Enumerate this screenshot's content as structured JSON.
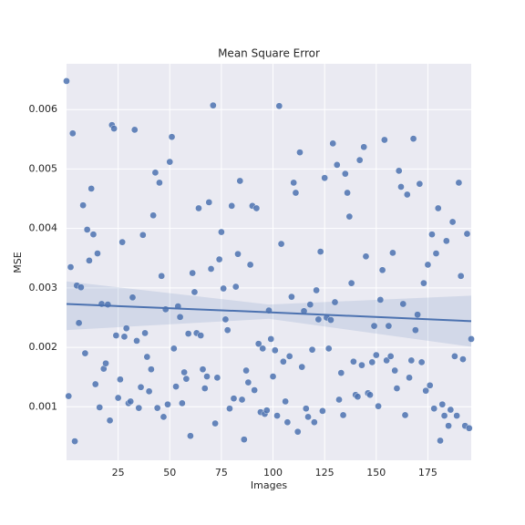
{
  "chart_data": {
    "type": "scatter",
    "title": "Mean Square Error",
    "x_label": "Images",
    "y_label": "MSE",
    "color": "#4c72b0",
    "grid": true,
    "xlim": [
      0,
      196
    ],
    "ylim": [
      0.0001,
      0.00677
    ],
    "xticks": [
      25,
      50,
      75,
      100,
      125,
      150,
      175
    ],
    "yticks": [
      0.001,
      0.002,
      0.003,
      0.004,
      0.005,
      0.006
    ],
    "x": [
      0,
      1,
      2,
      3,
      4,
      5,
      6,
      7,
      8,
      9,
      10,
      11,
      12,
      13,
      14,
      15,
      16,
      17,
      18,
      19,
      20,
      21,
      22,
      23,
      24,
      25,
      26,
      27,
      28,
      29,
      30,
      31,
      32,
      33,
      34,
      35,
      36,
      37,
      38,
      39,
      40,
      41,
      42,
      43,
      44,
      45,
      46,
      47,
      48,
      49,
      50,
      51,
      52,
      53,
      54,
      55,
      56,
      57,
      58,
      59,
      60,
      61,
      62,
      63,
      64,
      65,
      66,
      67,
      68,
      69,
      70,
      71,
      72,
      73,
      74,
      75,
      76,
      77,
      78,
      79,
      80,
      81,
      82,
      83,
      84,
      85,
      86,
      87,
      88,
      89,
      90,
      91,
      92,
      93,
      94,
      95,
      96,
      97,
      98,
      99,
      100,
      101,
      102,
      103,
      104,
      105,
      106,
      107,
      108,
      109,
      110,
      111,
      112,
      113,
      114,
      115,
      116,
      117,
      118,
      119,
      120,
      121,
      122,
      123,
      124,
      125,
      126,
      127,
      128,
      129,
      130,
      131,
      132,
      133,
      134,
      135,
      136,
      137,
      138,
      139,
      140,
      141,
      142,
      143,
      144,
      145,
      146,
      147,
      148,
      149,
      150,
      151,
      152,
      153,
      154,
      155,
      156,
      157,
      158,
      159,
      160,
      161,
      162,
      163,
      164,
      165,
      166,
      167,
      168,
      169,
      170,
      171,
      172,
      173,
      174,
      175,
      176,
      177,
      178,
      179,
      180,
      181,
      182,
      183,
      184,
      185,
      186,
      187,
      188,
      189,
      190,
      191,
      192,
      193,
      194,
      195,
      196
    ],
    "values": [
      0.00648,
      0.00118,
      0.00335,
      0.0056,
      0.00042,
      0.00304,
      0.00241,
      0.00301,
      0.00439,
      0.0019,
      0.00398,
      0.00346,
      0.00467,
      0.0039,
      0.00138,
      0.00358,
      0.00099,
      0.00273,
      0.00164,
      0.00173,
      0.00272,
      0.00077,
      0.00574,
      0.00568,
      0.0022,
      0.00115,
      0.00146,
      0.00377,
      0.00218,
      0.00232,
      0.00106,
      0.00109,
      0.00284,
      0.00566,
      0.00211,
      0.00098,
      0.00133,
      0.00389,
      0.00224,
      0.00184,
      0.00126,
      0.00163,
      0.00422,
      0.00494,
      0.00098,
      0.00477,
      0.0032,
      0.00083,
      0.00264,
      0.00104,
      0.00512,
      0.00554,
      0.00198,
      0.00134,
      0.00269,
      0.00251,
      0.00106,
      0.00158,
      0.00147,
      0.00223,
      0.00051,
      0.00325,
      0.00293,
      0.00224,
      0.00434,
      0.0022,
      0.00163,
      0.00131,
      0.00151,
      0.00444,
      0.00332,
      0.00607,
      0.00072,
      0.00149,
      0.00348,
      0.00394,
      0.00299,
      0.00247,
      0.00229,
      0.00097,
      0.00438,
      0.00114,
      0.00302,
      0.00357,
      0.0048,
      0.00112,
      0.00045,
      0.00161,
      0.00141,
      0.00339,
      0.00438,
      0.00128,
      0.00434,
      0.00206,
      0.00091,
      0.00198,
      0.00088,
      0.00094,
      0.00262,
      0.00214,
      0.00151,
      0.00195,
      0.00085,
      0.00606,
      0.00374,
      0.00176,
      0.00109,
      0.00074,
      0.00185,
      0.00285,
      0.00477,
      0.0046,
      0.00058,
      0.00528,
      0.00167,
      0.00261,
      0.00097,
      0.00083,
      0.00272,
      0.00196,
      0.00074,
      0.00296,
      0.00247,
      0.00361,
      0.00093,
      0.00485,
      0.0025,
      0.00198,
      0.00246,
      0.00543,
      0.00276,
      0.00507,
      0.00112,
      0.00157,
      0.00086,
      0.00492,
      0.0046,
      0.0042,
      0.00308,
      0.00176,
      0.0012,
      0.00117,
      0.00515,
      0.0017,
      0.00537,
      0.00353,
      0.00123,
      0.0012,
      0.00175,
      0.00236,
      0.00187,
      0.00101,
      0.0028,
      0.0033,
      0.00549,
      0.00178,
      0.00236,
      0.00185,
      0.00359,
      0.00161,
      0.00131,
      0.00497,
      0.0047,
      0.00273,
      0.00086,
      0.00457,
      0.00149,
      0.00178,
      0.00551,
      0.00229,
      0.00255,
      0.00475,
      0.00175,
      0.00308,
      0.00127,
      0.00339,
      0.00136,
      0.0039,
      0.00097,
      0.00358,
      0.00434,
      0.00043,
      0.00104,
      0.00085,
      0.00379,
      0.00068,
      0.00095,
      0.00411,
      0.00185,
      0.00085,
      0.00477,
      0.0032,
      0.0018,
      0.00068,
      0.00391,
      0.00064,
      0.00214
    ],
    "trend": {
      "x": [
        0,
        98,
        196
      ],
      "values": [
        0.00273,
        0.00259,
        0.00244
      ],
      "ci_upper": [
        0.00311,
        0.00272,
        0.00287
      ],
      "ci_lower": [
        0.00229,
        0.00248,
        0.00201
      ]
    }
  }
}
